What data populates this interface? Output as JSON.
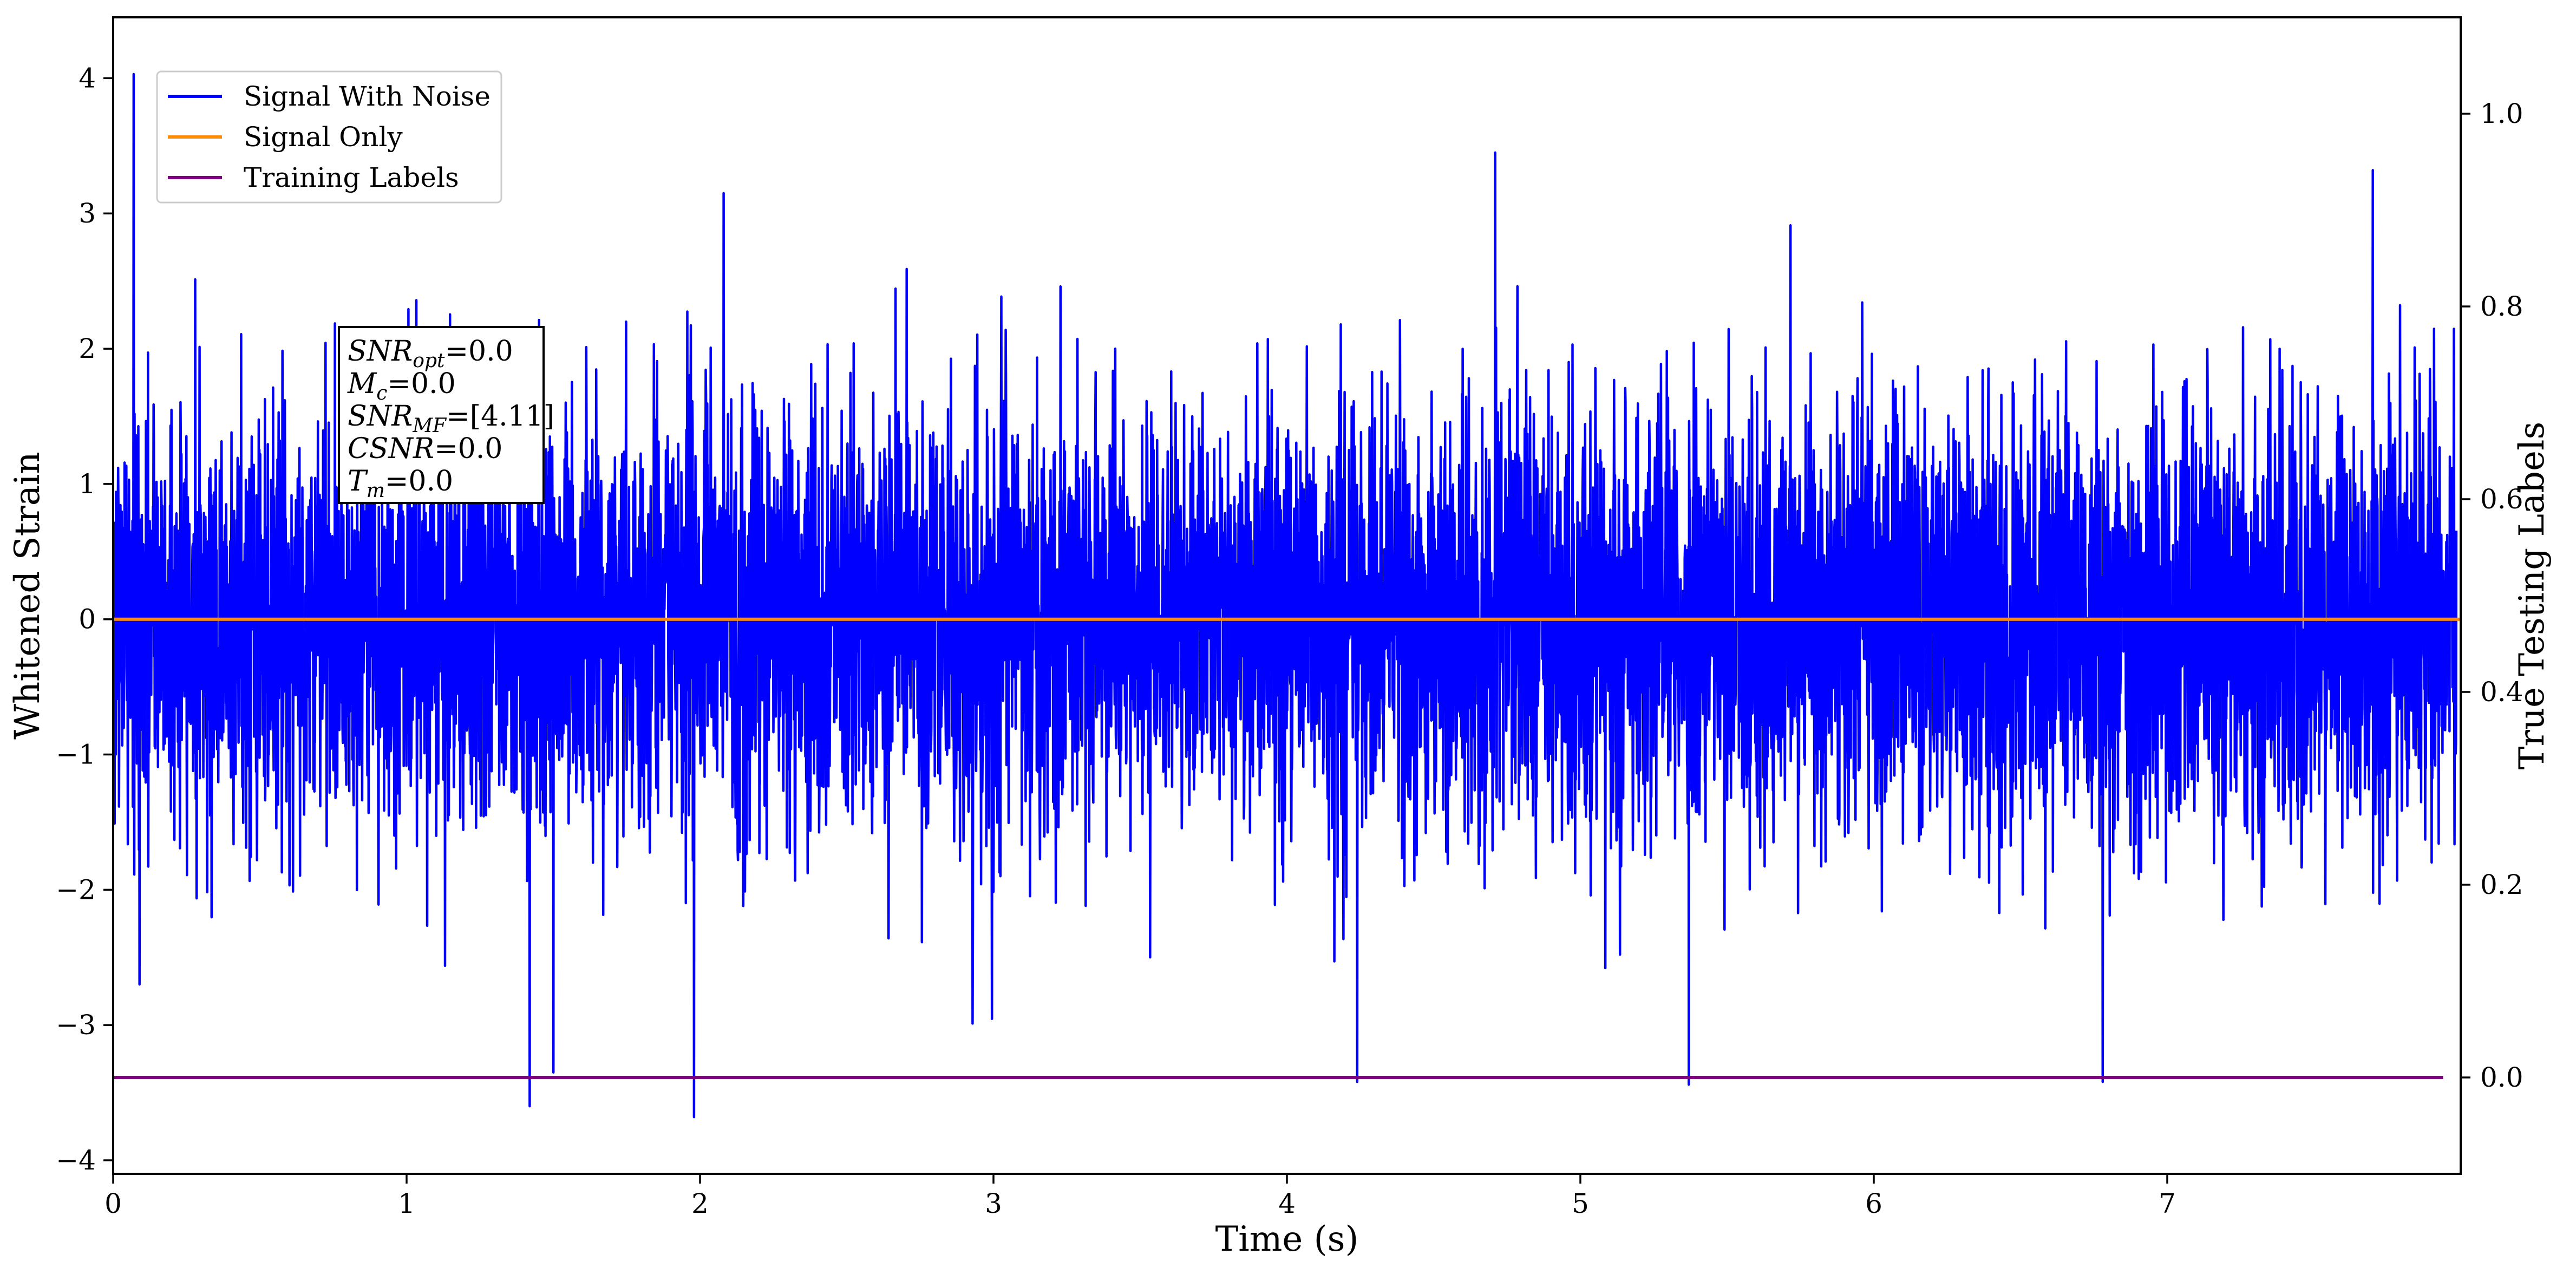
{
  "chart_data": {
    "type": "line",
    "title": "",
    "xlabel": "Time (s)",
    "ylabel": "Whitened Strain",
    "y2label": "True Testing Labels",
    "xlim": [
      0,
      8.0
    ],
    "ylim": [
      -4.1,
      4.45
    ],
    "y2lim": [
      -0.1,
      1.1
    ],
    "xticks": [
      0,
      1,
      2,
      3,
      4,
      5,
      6,
      7
    ],
    "yticks": [
      -4,
      -3,
      -2,
      -1,
      0,
      1,
      2,
      3,
      4
    ],
    "y2ticks": [
      0.0,
      0.2,
      0.4,
      0.6,
      0.8,
      1.0
    ],
    "xtick_labels": [
      "0",
      "1",
      "2",
      "3",
      "4",
      "5",
      "6",
      "7"
    ],
    "ytick_labels": [
      "−4",
      "−3",
      "−2",
      "−1",
      "0",
      "1",
      "2",
      "3",
      "4"
    ],
    "y2tick_labels": [
      "0.0",
      "0.2",
      "0.4",
      "0.6",
      "0.8",
      "1.0"
    ],
    "grid": false,
    "legend_position": "top-left",
    "series": [
      {
        "name": "Signal With Noise",
        "axis": "left",
        "color": "#0000ff",
        "description": "whitened noise time series, values roughly within -3.7 to 4.05",
        "notable_peaks": [
          {
            "x": 0.07,
            "y": 4.03
          },
          {
            "x": 0.09,
            "y": -2.7
          },
          {
            "x": 1.42,
            "y": -3.6
          },
          {
            "x": 1.5,
            "y": -3.35
          },
          {
            "x": 1.98,
            "y": -3.68
          },
          {
            "x": 2.08,
            "y": 3.15
          },
          {
            "x": 4.24,
            "y": -3.42
          },
          {
            "x": 4.71,
            "y": 3.45
          },
          {
            "x": 5.37,
            "y": -3.44
          },
          {
            "x": 6.78,
            "y": -3.42
          },
          {
            "x": 7.7,
            "y": 3.32
          }
        ]
      },
      {
        "name": "Signal Only",
        "axis": "left",
        "color": "#ff8c00",
        "x": [
          0,
          8.0
        ],
        "y": [
          0.0,
          0.0
        ]
      },
      {
        "name": "Training Labels",
        "axis": "right",
        "color": "#800080",
        "x": [
          0,
          7.94
        ],
        "y": [
          0.0,
          0.0
        ]
      }
    ],
    "annotation": {
      "lines": [
        {
          "main": "SNR",
          "sub": "opt",
          "value": "=0.0"
        },
        {
          "main": "M",
          "sub": "c",
          "value": "=0.0"
        },
        {
          "main": "SNR",
          "sub": "MF",
          "value": "=[4.11]"
        },
        {
          "main": "CSNR",
          "sub": "",
          "value": "=0.0"
        },
        {
          "main": "T",
          "sub": "m",
          "value": "=0.0"
        }
      ]
    }
  }
}
